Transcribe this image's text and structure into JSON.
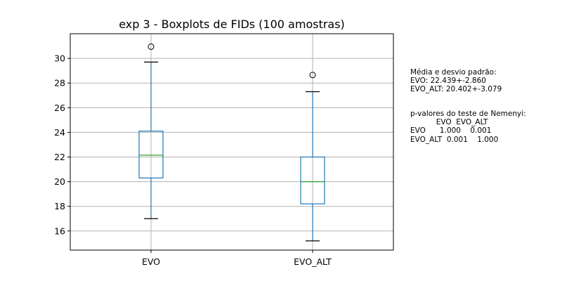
{
  "chart_data": {
    "type": "boxplot",
    "title": "exp 3 - Boxplots de FIDs (100 amostras)",
    "xlabel": "",
    "ylabel": "",
    "categories": [
      "EVO",
      "EVO_ALT"
    ],
    "boxes": [
      {
        "name": "EVO",
        "whisker_low": 17.0,
        "q1": 20.3,
        "median": 22.15,
        "q3": 24.1,
        "whisker_high": 29.7,
        "outliers": [
          30.95
        ]
      },
      {
        "name": "EVO_ALT",
        "whisker_low": 15.2,
        "q1": 18.2,
        "median": 20.0,
        "q3": 22.0,
        "whisker_high": 27.3,
        "outliers": [
          28.65
        ]
      }
    ],
    "yticks": [
      16,
      18,
      20,
      22,
      24,
      26,
      28,
      30
    ],
    "ylim": [
      14.45,
      32.0
    ],
    "grid": true,
    "colors": {
      "box": "#1f77b4",
      "median": "#2ca02c",
      "whisker_cap": "#000000",
      "grid": "#b0b0b0"
    }
  },
  "side_text": {
    "stats_header": "Média e desvio padrão:",
    "stats_lines": [
      "EVO: 22.439+-2.860",
      "EVO_ALT: 20.402+-3.079"
    ],
    "nemenyi_header": "p-valores do teste de Nemenyi:",
    "nemenyi_columns": "           EVO  EVO_ALT",
    "nemenyi_rows": [
      "EVO      1.000    0.001",
      "EVO_ALT  0.001    1.000"
    ]
  }
}
